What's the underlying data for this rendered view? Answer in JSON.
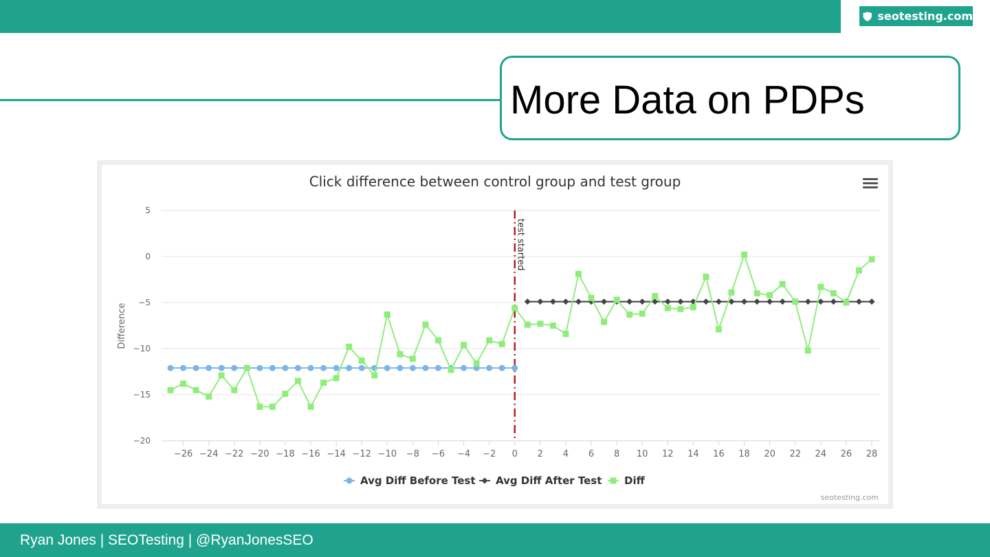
{
  "logo": {
    "text": "seotesting.com",
    "icon": "shield-icon"
  },
  "slide": {
    "title": "More Data on PDPs"
  },
  "footer": {
    "text": "Ryan Jones | SEOTesting | @RyanJonesSEO"
  },
  "colors": {
    "brand": "#20a38e",
    "before": "#7cb5ec",
    "after": "#434348",
    "diff": "#90ed7d",
    "marker_line": "#b22222"
  },
  "chart_data": {
    "type": "line",
    "title": "Click difference between control group and test group",
    "xlabel": "",
    "ylabel": "Difference",
    "xlim": [
      -27,
      28
    ],
    "ylim": [
      -20,
      5
    ],
    "x_ticks": [
      -26,
      -24,
      -22,
      -20,
      -18,
      -16,
      -14,
      -12,
      -10,
      -8,
      -6,
      -4,
      -2,
      0,
      2,
      4,
      6,
      8,
      10,
      12,
      14,
      16,
      18,
      20,
      22,
      24,
      26,
      28
    ],
    "y_ticks": [
      5,
      0,
      -5,
      -10,
      -15,
      -20
    ],
    "grid": true,
    "legend": "bottom-center",
    "credit": "seotesting.com",
    "plot_line": {
      "x": 0,
      "label": "test started"
    },
    "series": [
      {
        "name": "Avg Diff Before Test",
        "marker": "circle",
        "x": [
          -27,
          -26,
          -25,
          -24,
          -23,
          -22,
          -21,
          -20,
          -19,
          -18,
          -17,
          -16,
          -15,
          -14,
          -13,
          -12,
          -11,
          -10,
          -9,
          -8,
          -7,
          -6,
          -5,
          -4,
          -3,
          -2,
          -1,
          0
        ],
        "y": [
          -12.1,
          -12.1,
          -12.1,
          -12.1,
          -12.1,
          -12.1,
          -12.1,
          -12.1,
          -12.1,
          -12.1,
          -12.1,
          -12.1,
          -12.1,
          -12.1,
          -12.1,
          -12.1,
          -12.1,
          -12.1,
          -12.1,
          -12.1,
          -12.1,
          -12.1,
          -12.1,
          -12.1,
          -12.1,
          -12.1,
          -12.1,
          -12.1
        ]
      },
      {
        "name": "Avg Diff After Test",
        "marker": "diamond",
        "x": [
          1,
          2,
          3,
          4,
          5,
          6,
          7,
          8,
          9,
          10,
          11,
          12,
          13,
          14,
          15,
          16,
          17,
          18,
          19,
          20,
          21,
          22,
          23,
          24,
          25,
          26,
          27,
          28
        ],
        "y": [
          -4.9,
          -4.9,
          -4.9,
          -4.9,
          -4.9,
          -4.9,
          -4.9,
          -4.9,
          -4.9,
          -4.9,
          -4.9,
          -4.9,
          -4.9,
          -4.9,
          -4.9,
          -4.9,
          -4.9,
          -4.9,
          -4.9,
          -4.9,
          -4.9,
          -4.9,
          -4.9,
          -4.9,
          -4.9,
          -4.9,
          -4.9,
          -4.9
        ]
      },
      {
        "name": "Diff",
        "marker": "square",
        "x": [
          -27,
          -26,
          -25,
          -24,
          -23,
          -22,
          -21,
          -20,
          -19,
          -18,
          -17,
          -16,
          -15,
          -14,
          -13,
          -12,
          -11,
          -10,
          -9,
          -8,
          -7,
          -6,
          -5,
          -4,
          -3,
          -2,
          -1,
          0,
          1,
          2,
          3,
          4,
          5,
          6,
          7,
          8,
          9,
          10,
          11,
          12,
          13,
          14,
          15,
          16,
          17,
          18,
          19,
          20,
          21,
          22,
          23,
          24,
          25,
          26,
          27,
          28
        ],
        "y": [
          -14.5,
          -13.8,
          -14.5,
          -15.2,
          -12.9,
          -14.5,
          -12.1,
          -16.3,
          -16.3,
          -14.9,
          -13.5,
          -16.3,
          -13.7,
          -13.2,
          -9.8,
          -11.3,
          -12.9,
          -6.3,
          -10.6,
          -11.1,
          -7.4,
          -9.1,
          -12.3,
          -9.6,
          -11.6,
          -9.1,
          -9.5,
          -5.6,
          -7.4,
          -7.3,
          -7.5,
          -8.4,
          -1.9,
          -4.5,
          -7.1,
          -4.7,
          -6.3,
          -6.2,
          -4.3,
          -5.6,
          -5.7,
          -5.5,
          -2.2,
          -7.9,
          -3.9,
          0.2,
          -4,
          -4.2,
          -3,
          -4.9,
          -10.2,
          -3.3,
          -4,
          -5,
          -1.5,
          -0.3
        ]
      }
    ]
  }
}
